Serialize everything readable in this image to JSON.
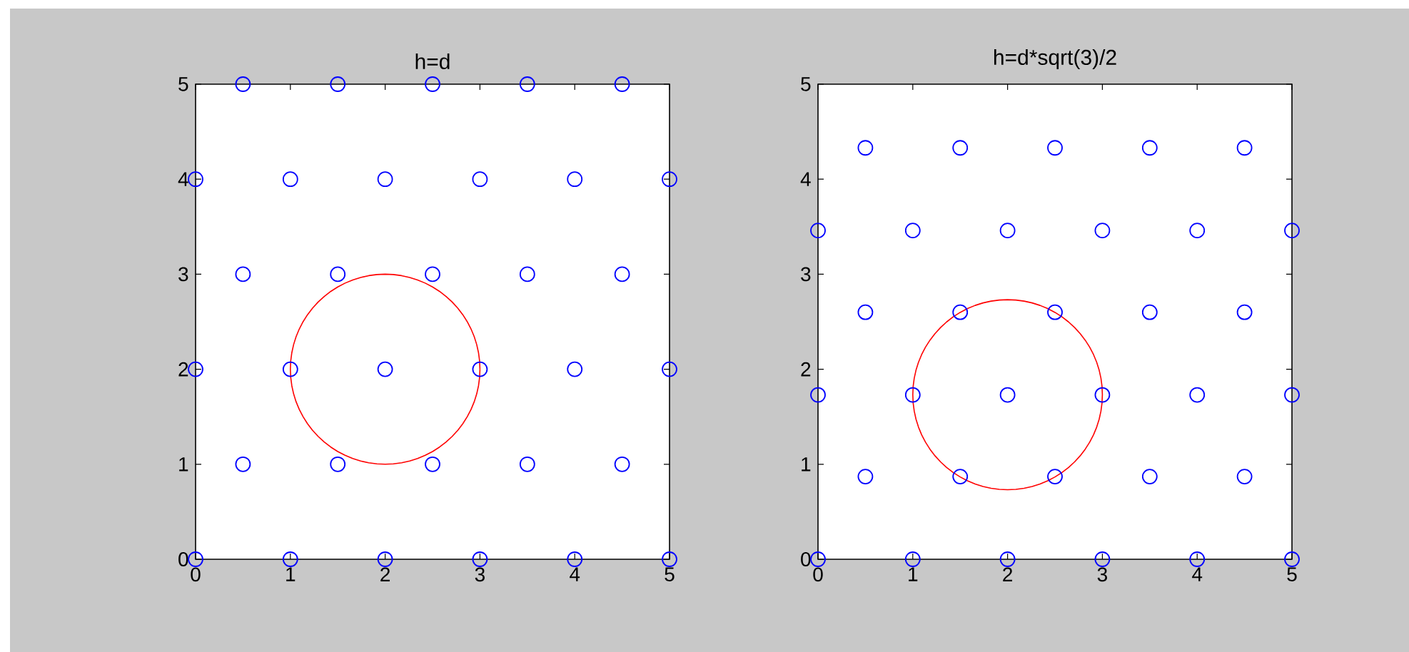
{
  "chart_data": [
    {
      "type": "scatter",
      "title": "h=d",
      "xlim": [
        0,
        5
      ],
      "ylim": [
        0,
        5
      ],
      "xticks": [
        0,
        1,
        2,
        3,
        4,
        5
      ],
      "yticks": [
        0,
        1,
        2,
        3,
        4,
        5
      ],
      "series": [
        {
          "color": "#0000ff",
          "marker": "circle",
          "x": [
            0,
            1,
            2,
            3,
            4,
            5,
            0.5,
            1.5,
            2.5,
            3.5,
            4.5,
            0,
            1,
            2,
            3,
            4,
            5,
            0.5,
            1.5,
            2.5,
            3.5,
            4.5,
            0,
            1,
            2,
            3,
            4,
            5,
            0.5,
            1.5,
            2.5,
            3.5,
            4.5
          ],
          "values": [
            0,
            0,
            0,
            0,
            0,
            0,
            1,
            1,
            1,
            1,
            1,
            2,
            2,
            2,
            2,
            2,
            2,
            3,
            3,
            3,
            3,
            3,
            4,
            4,
            4,
            4,
            4,
            4,
            5,
            5,
            5,
            5,
            5
          ]
        }
      ]
    },
    {
      "type": "scatter",
      "title": "h=d*sqrt(3)/2",
      "xlim": [
        0,
        5
      ],
      "ylim": [
        0,
        5
      ],
      "xticks": [
        0,
        1,
        2,
        3,
        4,
        5
      ],
      "yticks": [
        0,
        1,
        2,
        3,
        4,
        5
      ],
      "series": [
        {
          "color": "#0000ff",
          "marker": "circle",
          "x": [
            0,
            1,
            2,
            3,
            4,
            5,
            0.5,
            1.5,
            2.5,
            3.5,
            4.5,
            0,
            1,
            2,
            3,
            4,
            5,
            0.5,
            1.5,
            2.5,
            3.5,
            4.5,
            0,
            1,
            2,
            3,
            4,
            5,
            0.5,
            1.5,
            2.5,
            3.5,
            4.5
          ],
          "values": [
            0,
            0,
            0,
            0,
            0,
            0,
            0.87,
            0.87,
            0.87,
            0.87,
            0.87,
            1.73,
            1.73,
            1.73,
            1.73,
            1.73,
            1.73,
            2.6,
            2.6,
            2.6,
            2.6,
            2.6,
            3.46,
            3.46,
            3.46,
            3.46,
            3.46,
            3.46,
            4.33,
            4.33,
            4.33,
            4.33,
            4.33
          ]
        }
      ]
    }
  ]
}
